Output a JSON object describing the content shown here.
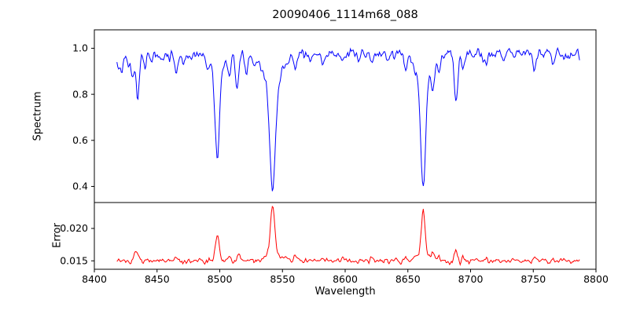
{
  "title": "20090406_1114m68_088",
  "axes": {
    "xlabel": "Wavelength",
    "xlim": [
      8400,
      8800
    ],
    "xticks": [
      8400,
      8450,
      8500,
      8550,
      8600,
      8650,
      8700,
      8750,
      8800
    ],
    "grid": false,
    "legend": "none"
  },
  "chart_data": [
    {
      "type": "line",
      "name": "spectrum",
      "ylabel": "Spectrum",
      "color": "#0000ff",
      "ylim": [
        0.33,
        1.08
      ],
      "yticks": [
        0.4,
        0.6,
        0.8,
        1.0
      ],
      "ytick_labels": [
        "0.4",
        "0.6",
        "0.8",
        "1.0"
      ],
      "x_start": 8418,
      "x_end": 8787,
      "baseline": 0.978,
      "noise_amp": 0.018,
      "sin_amp": 0.007,
      "seed": 42,
      "features": [
        {
          "center": 8419.0,
          "amp": -0.05,
          "width": 1.5
        },
        {
          "center": 8422.0,
          "amp": -0.08,
          "width": 1.2
        },
        {
          "center": 8427.0,
          "amp": -0.05,
          "width": 1.0
        },
        {
          "center": 8430.5,
          "amp": -0.11,
          "width": 1.2
        },
        {
          "center": 8434.5,
          "amp": -0.2,
          "width": 1.3
        },
        {
          "center": 8440.0,
          "amp": -0.07,
          "width": 1.1
        },
        {
          "center": 8446.0,
          "amp": -0.04,
          "width": 1.0
        },
        {
          "center": 8455.0,
          "amp": -0.05,
          "width": 1.1
        },
        {
          "center": 8465.0,
          "amp": -0.09,
          "width": 1.4
        },
        {
          "center": 8471.0,
          "amp": -0.06,
          "width": 1.1
        },
        {
          "center": 8478.0,
          "amp": -0.03,
          "width": 1.0
        },
        {
          "center": 8490.0,
          "amp": -0.04,
          "width": 1.0
        },
        {
          "center": 8498.0,
          "amp": -0.37,
          "width": 1.8
        },
        {
          "center": 8498.0,
          "amp": -0.07,
          "width": 6.0
        },
        {
          "center": 8508.0,
          "amp": -0.07,
          "width": 1.1
        },
        {
          "center": 8514.0,
          "amp": -0.13,
          "width": 1.4
        },
        {
          "center": 8521.0,
          "amp": -0.08,
          "width": 1.2
        },
        {
          "center": 8527.0,
          "amp": -0.04,
          "width": 1.0
        },
        {
          "center": 8542.1,
          "amp": -0.48,
          "width": 2.2
        },
        {
          "center": 8542.1,
          "amp": -0.12,
          "width": 8.0
        },
        {
          "center": 8560.0,
          "amp": -0.04,
          "width": 1.0
        },
        {
          "center": 8572.0,
          "amp": -0.03,
          "width": 1.0
        },
        {
          "center": 8582.0,
          "amp": -0.05,
          "width": 1.2
        },
        {
          "center": 8598.0,
          "amp": -0.04,
          "width": 1.1
        },
        {
          "center": 8611.0,
          "amp": -0.03,
          "width": 1.0
        },
        {
          "center": 8621.0,
          "amp": -0.05,
          "width": 1.1
        },
        {
          "center": 8634.0,
          "amp": -0.03,
          "width": 1.0
        },
        {
          "center": 8648.0,
          "amp": -0.05,
          "width": 1.2
        },
        {
          "center": 8662.1,
          "amp": -0.47,
          "width": 2.0
        },
        {
          "center": 8662.1,
          "amp": -0.1,
          "width": 6.5
        },
        {
          "center": 8670.0,
          "amp": -0.12,
          "width": 1.2
        },
        {
          "center": 8675.0,
          "amp": -0.08,
          "width": 1.1
        },
        {
          "center": 8688.5,
          "amp": -0.21,
          "width": 1.4
        },
        {
          "center": 8694.0,
          "amp": -0.07,
          "width": 1.1
        },
        {
          "center": 8713.0,
          "amp": -0.05,
          "width": 1.2
        },
        {
          "center": 8727.0,
          "amp": -0.03,
          "width": 1.0
        },
        {
          "center": 8751.0,
          "amp": -0.07,
          "width": 1.3
        },
        {
          "center": 8766.0,
          "amp": -0.04,
          "width": 1.1
        },
        {
          "center": 8777.0,
          "amp": -0.03,
          "width": 1.0
        }
      ]
    },
    {
      "type": "line",
      "name": "error",
      "ylabel": "Error",
      "color": "#ff0000",
      "ylim": [
        0.0137,
        0.024
      ],
      "yticks": [
        0.015,
        0.02
      ],
      "ytick_labels": [
        "0.015",
        "0.020"
      ],
      "x_start": 8418,
      "x_end": 8787,
      "baseline": 0.015,
      "noise_amp": 0.00035,
      "sin_amp": 0.00012,
      "seed": 7,
      "features": [
        {
          "center": 8433.0,
          "amp": 0.0016,
          "width": 1.6
        },
        {
          "center": 8465.0,
          "amp": 0.0005,
          "width": 1.2
        },
        {
          "center": 8498.0,
          "amp": 0.0038,
          "width": 1.6
        },
        {
          "center": 8508.0,
          "amp": 0.0007,
          "width": 1.0
        },
        {
          "center": 8515.0,
          "amp": 0.0011,
          "width": 1.3
        },
        {
          "center": 8542.1,
          "amp": 0.0075,
          "width": 1.6
        },
        {
          "center": 8542.1,
          "amp": 0.0012,
          "width": 5.0
        },
        {
          "center": 8552.0,
          "amp": 0.0006,
          "width": 1.0
        },
        {
          "center": 8560.0,
          "amp": 0.0007,
          "width": 1.0
        },
        {
          "center": 8582.0,
          "amp": 0.0005,
          "width": 1.0
        },
        {
          "center": 8598.0,
          "amp": 0.0005,
          "width": 1.0
        },
        {
          "center": 8621.0,
          "amp": 0.0006,
          "width": 1.0
        },
        {
          "center": 8648.0,
          "amp": 0.0005,
          "width": 1.0
        },
        {
          "center": 8662.1,
          "amp": 0.0068,
          "width": 1.5
        },
        {
          "center": 8662.1,
          "amp": 0.001,
          "width": 5.0
        },
        {
          "center": 8670.0,
          "amp": 0.0012,
          "width": 1.2
        },
        {
          "center": 8675.0,
          "amp": 0.0008,
          "width": 1.0
        },
        {
          "center": 8688.5,
          "amp": 0.0016,
          "width": 1.3
        },
        {
          "center": 8694.0,
          "amp": 0.0006,
          "width": 1.0
        },
        {
          "center": 8713.0,
          "amp": 0.0005,
          "width": 1.0
        },
        {
          "center": 8751.0,
          "amp": 0.0006,
          "width": 1.2
        }
      ]
    }
  ]
}
